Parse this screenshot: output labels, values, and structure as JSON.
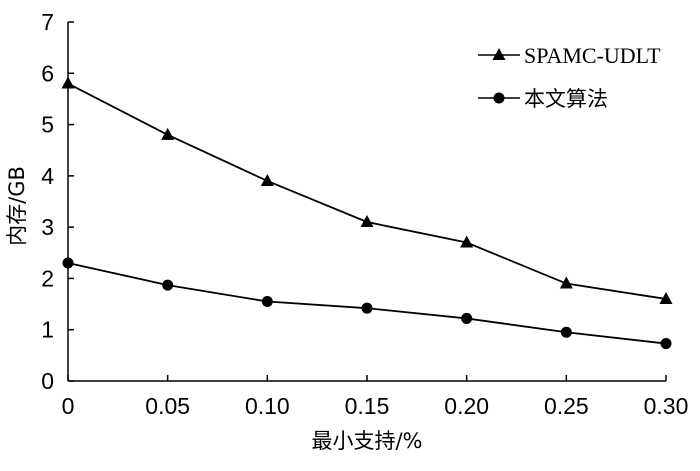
{
  "chart_data": {
    "type": "line",
    "xlabel": "最小支持/%",
    "ylabel": "内存/GB",
    "x": [
      0,
      0.05,
      0.1,
      0.15,
      0.2,
      0.25,
      0.3
    ],
    "x_tick_labels": [
      "0",
      "0.05",
      "0.10",
      "0.15",
      "0.20",
      "0.25",
      "0.30"
    ],
    "y_tick_labels": [
      "0",
      "1",
      "2",
      "3",
      "4",
      "5",
      "6",
      "7"
    ],
    "xlim": [
      0,
      0.3
    ],
    "ylim": [
      0,
      7
    ],
    "grid": false,
    "legend_position": "top-right",
    "series": [
      {
        "name": "SPAMC-UDLT",
        "marker": "triangle",
        "color": "#000000",
        "values": [
          5.8,
          4.8,
          3.9,
          3.1,
          2.7,
          1.9,
          1.6
        ]
      },
      {
        "name": "本文算法",
        "marker": "circle",
        "color": "#000000",
        "values": [
          2.3,
          1.87,
          1.55,
          1.42,
          1.22,
          0.95,
          0.73
        ]
      }
    ]
  }
}
